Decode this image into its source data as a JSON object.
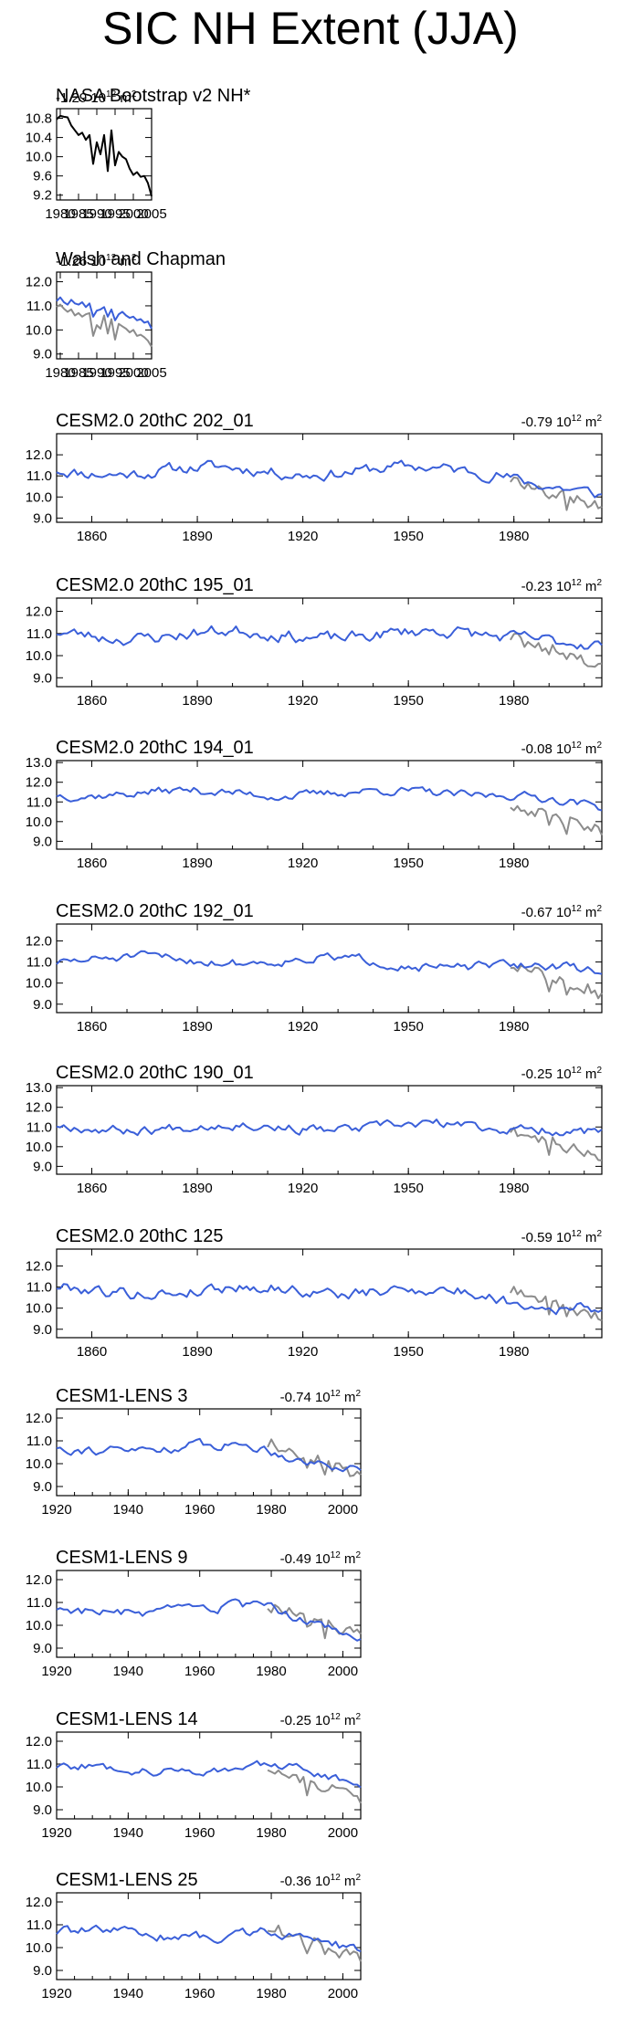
{
  "title": "SIC NH Extent (JJA)",
  "colors": {
    "model": "#3a5fd9",
    "obs": "#8c8c8c",
    "nasa": "#000000"
  },
  "chart_data": [
    {
      "type": "line",
      "title": "NASA Bootstrap v2 NH*",
      "trend_text": "-1.29 10",
      "trend_exp": "12",
      "trend_unit": " m",
      "trend_unit_exp": "2",
      "xlim": [
        1979,
        2005
      ],
      "ylim": [
        9.1,
        11.0
      ],
      "xticks": [
        1980,
        1985,
        1990,
        1995,
        2000,
        2005
      ],
      "xtick_labels": [
        "1980",
        "1985",
        "1990",
        "1995",
        "2000",
        "2005"
      ],
      "yticks": [
        9.2,
        9.6,
        10.0,
        10.4,
        10.8
      ],
      "ytick_labels": [
        "9.2",
        "9.6",
        "10.0",
        "10.4",
        "10.8"
      ],
      "series": [
        {
          "role": "nasa",
          "x_start": 1979,
          "values": [
            10.78,
            10.85,
            10.83,
            10.82,
            10.65,
            10.55,
            10.45,
            10.5,
            10.35,
            10.45,
            9.85,
            10.3,
            10.05,
            10.45,
            9.7,
            10.55,
            9.82,
            10.1,
            10.0,
            9.95,
            9.75,
            9.62,
            9.68,
            9.58,
            9.6,
            9.45,
            9.18
          ]
        }
      ]
    },
    {
      "type": "line",
      "title": "Walsh and Chapman",
      "trend_text": "-1.26 10",
      "trend_exp": "12",
      "trend_unit": " m",
      "trend_unit_exp": "2",
      "xlim": [
        1979,
        2005
      ],
      "ylim": [
        8.8,
        12.4
      ],
      "xticks": [
        1980,
        1985,
        1990,
        1995,
        2000,
        2005
      ],
      "xtick_labels": [
        "1980",
        "1985",
        "1990",
        "1995",
        "2000",
        "2005"
      ],
      "yticks": [
        9.0,
        10.0,
        11.0,
        12.0
      ],
      "ytick_labels": [
        "9.0",
        "10.0",
        "11.0",
        "12.0"
      ],
      "series": [
        {
          "role": "obs",
          "x_start": 1979,
          "values": [
            10.95,
            11.05,
            10.88,
            10.75,
            10.85,
            10.6,
            10.7,
            10.55,
            10.65,
            10.7,
            9.75,
            10.2,
            10.05,
            10.6,
            9.85,
            10.45,
            9.6,
            10.25,
            10.15,
            10.05,
            9.9,
            10.0,
            9.75,
            9.8,
            9.7,
            9.55,
            9.3
          ]
        },
        {
          "role": "model",
          "x_start": 1979,
          "values": [
            11.2,
            11.35,
            11.15,
            11.05,
            11.25,
            11.1,
            11.05,
            11.15,
            10.95,
            11.1,
            10.55,
            10.8,
            10.85,
            10.95,
            10.55,
            10.85,
            10.4,
            10.65,
            10.75,
            10.6,
            10.5,
            10.55,
            10.4,
            10.45,
            10.3,
            10.35,
            10.05
          ]
        }
      ]
    },
    {
      "type": "line",
      "title": "CESM2.0 20thC 202_01",
      "trend_text": "-0.79 10",
      "trend_exp": "12",
      "trend_unit": " m",
      "trend_unit_exp": "2",
      "xlim": [
        1850,
        2005
      ],
      "ylim": [
        8.8,
        13.0
      ],
      "xticks": [
        1860,
        1890,
        1920,
        1950,
        1980
      ],
      "xtick_labels": [
        "1860",
        "1890",
        "1920",
        "1950",
        "1980"
      ],
      "yticks": [
        9.0,
        10.0,
        11.0,
        12.0
      ],
      "ytick_labels": [
        "9.0",
        "10.0",
        "11.0",
        "12.0"
      ],
      "gen": {
        "seed": 11,
        "base": 11.25,
        "amp": 0.45,
        "trend_start": 1975,
        "trend_end": 9.9
      }
    },
    {
      "type": "line",
      "title": "CESM2.0 20thC 195_01",
      "trend_text": "-0.23 10",
      "trend_exp": "12",
      "trend_unit": " m",
      "trend_unit_exp": "2",
      "xlim": [
        1850,
        2005
      ],
      "ylim": [
        8.6,
        12.6
      ],
      "xticks": [
        1860,
        1890,
        1920,
        1950,
        1980
      ],
      "xtick_labels": [
        "1860",
        "1890",
        "1920",
        "1950",
        "1980"
      ],
      "yticks": [
        9.0,
        10.0,
        11.0,
        12.0
      ],
      "ytick_labels": [
        "9.0",
        "10.0",
        "11.0",
        "12.0"
      ],
      "gen": {
        "seed": 23,
        "base": 10.95,
        "amp": 0.45,
        "trend_start": 1985,
        "trend_end": 10.4
      }
    },
    {
      "type": "line",
      "title": "CESM2.0 20thC 194_01",
      "trend_text": "-0.08 10",
      "trend_exp": "12",
      "trend_unit": " m",
      "trend_unit_exp": "2",
      "xlim": [
        1850,
        2005
      ],
      "ylim": [
        8.6,
        13.1
      ],
      "xticks": [
        1860,
        1890,
        1920,
        1950,
        1980
      ],
      "xtick_labels": [
        "1860",
        "1890",
        "1920",
        "1950",
        "1980"
      ],
      "yticks": [
        9.0,
        10.0,
        11.0,
        12.0,
        13.0
      ],
      "ytick_labels": [
        "9.0",
        "10.0",
        "11.0",
        "12.0",
        "13.0"
      ],
      "gen": {
        "seed": 37,
        "base": 11.45,
        "amp": 0.35,
        "trend_start": 1980,
        "trend_end": 10.6
      }
    },
    {
      "type": "line",
      "title": "CESM2.0 20thC 192_01",
      "trend_text": "-0.67 10",
      "trend_exp": "12",
      "trend_unit": " m",
      "trend_unit_exp": "2",
      "xlim": [
        1850,
        2005
      ],
      "ylim": [
        8.6,
        12.8
      ],
      "xticks": [
        1860,
        1890,
        1920,
        1950,
        1980
      ],
      "xtick_labels": [
        "1860",
        "1890",
        "1920",
        "1950",
        "1980"
      ],
      "yticks": [
        9.0,
        10.0,
        11.0,
        12.0
      ],
      "ytick_labels": [
        "9.0",
        "10.0",
        "11.0",
        "12.0"
      ],
      "gen": {
        "seed": 51,
        "base": 11.1,
        "amp": 0.35,
        "trend_start": 1920,
        "trend_end": 10.6
      }
    },
    {
      "type": "line",
      "title": "CESM2.0 20thC 190_01",
      "trend_text": "-0.25 10",
      "trend_exp": "12",
      "trend_unit": " m",
      "trend_unit_exp": "2",
      "xlim": [
        1850,
        2005
      ],
      "ylim": [
        8.6,
        13.1
      ],
      "xticks": [
        1860,
        1890,
        1920,
        1950,
        1980
      ],
      "xtick_labels": [
        "1860",
        "1890",
        "1920",
        "1950",
        "1980"
      ],
      "yticks": [
        9.0,
        10.0,
        11.0,
        12.0,
        13.0
      ],
      "ytick_labels": [
        "9.0",
        "10.0",
        "11.0",
        "12.0",
        "13.0"
      ],
      "gen": {
        "seed": 67,
        "base": 11.0,
        "amp": 0.4,
        "trend_start": 1990,
        "trend_end": 10.6
      }
    },
    {
      "type": "line",
      "title": "CESM2.0 20thC 125",
      "trend_text": "-0.59 10",
      "trend_exp": "12",
      "trend_unit": " m",
      "trend_unit_exp": "2",
      "xlim": [
        1850,
        2005
      ],
      "ylim": [
        8.6,
        12.8
      ],
      "xticks": [
        1860,
        1890,
        1920,
        1950,
        1980
      ],
      "xtick_labels": [
        "1860",
        "1890",
        "1920",
        "1950",
        "1980"
      ],
      "yticks": [
        9.0,
        10.0,
        11.0,
        12.0
      ],
      "ytick_labels": [
        "9.0",
        "10.0",
        "11.0",
        "12.0"
      ],
      "gen": {
        "seed": 79,
        "base": 10.85,
        "amp": 0.45,
        "trend_start": 1950,
        "trend_end": 10.0
      }
    },
    {
      "type": "line",
      "title": "CESM1-LENS 3",
      "trend_text": "-0.74 10",
      "trend_exp": "12",
      "trend_unit": " m",
      "trend_unit_exp": "2",
      "xlim": [
        1920,
        2005
      ],
      "ylim": [
        8.6,
        12.4
      ],
      "xticks": [
        1920,
        1940,
        1960,
        1980,
        2000
      ],
      "xtick_labels": [
        "1920",
        "1940",
        "1960",
        "1980",
        "2000"
      ],
      "yticks": [
        9.0,
        10.0,
        11.0,
        12.0
      ],
      "ytick_labels": [
        "9.0",
        "10.0",
        "11.0",
        "12.0"
      ],
      "gen": {
        "seed": 91,
        "base": 10.7,
        "amp": 0.35,
        "trend_start": 1975,
        "trend_end": 9.8
      }
    },
    {
      "type": "line",
      "title": "CESM1-LENS 9",
      "trend_text": "-0.49 10",
      "trend_exp": "12",
      "trend_unit": " m",
      "trend_unit_exp": "2",
      "xlim": [
        1920,
        2005
      ],
      "ylim": [
        8.6,
        12.4
      ],
      "xticks": [
        1920,
        1940,
        1960,
        1980,
        2000
      ],
      "xtick_labels": [
        "1920",
        "1940",
        "1960",
        "1980",
        "2000"
      ],
      "yticks": [
        9.0,
        10.0,
        11.0,
        12.0
      ],
      "ytick_labels": [
        "9.0",
        "10.0",
        "11.0",
        "12.0"
      ],
      "gen": {
        "seed": 103,
        "base": 10.65,
        "amp": 0.35,
        "trend_start": 1980,
        "trend_end": 9.6
      }
    },
    {
      "type": "line",
      "title": "CESM1-LENS 14",
      "trend_text": "-0.25 10",
      "trend_exp": "12",
      "trend_unit": " m",
      "trend_unit_exp": "2",
      "xlim": [
        1920,
        2005
      ],
      "ylim": [
        8.6,
        12.4
      ],
      "xticks": [
        1920,
        1940,
        1960,
        1980,
        2000
      ],
      "xtick_labels": [
        "1920",
        "1940",
        "1960",
        "1980",
        "2000"
      ],
      "yticks": [
        9.0,
        10.0,
        11.0,
        12.0
      ],
      "ytick_labels": [
        "9.0",
        "10.0",
        "11.0",
        "12.0"
      ],
      "gen": {
        "seed": 127,
        "base": 10.8,
        "amp": 0.3,
        "trend_start": 1985,
        "trend_end": 10.2
      }
    },
    {
      "type": "line",
      "title": "CESM1-LENS 25",
      "trend_text": "-0.36 10",
      "trend_exp": "12",
      "trend_unit": " m",
      "trend_unit_exp": "2",
      "xlim": [
        1920,
        2005
      ],
      "ylim": [
        8.6,
        12.4
      ],
      "xticks": [
        1920,
        1940,
        1960,
        1980,
        2000
      ],
      "xtick_labels": [
        "1920",
        "1940",
        "1960",
        "1980",
        "2000"
      ],
      "yticks": [
        9.0,
        10.0,
        11.0,
        12.0
      ],
      "ytick_labels": [
        "9.0",
        "10.0",
        "11.0",
        "12.0"
      ],
      "gen": {
        "seed": 139,
        "base": 10.6,
        "amp": 0.35,
        "trend_start": 1980,
        "trend_end": 9.9
      }
    }
  ]
}
